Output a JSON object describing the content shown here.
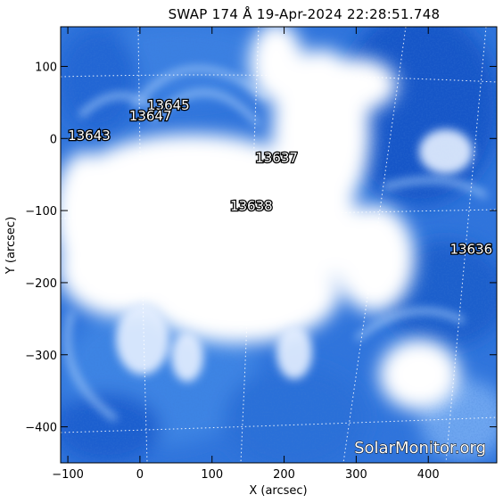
{
  "title": "SWAP 174 Å 19-Apr-2024 22:28:51.748",
  "x_axis": {
    "label": "X (arcsec)",
    "range": [
      -110,
      495
    ],
    "ticks": [
      -100,
      0,
      100,
      200,
      300,
      400
    ],
    "tick_labels": [
      "−100",
      "0",
      "100",
      "200",
      "300",
      "400"
    ]
  },
  "y_axis": {
    "label": "Y (arcsec)",
    "range": [
      -450,
      155
    ],
    "ticks": [
      100,
      0,
      -100,
      -200,
      -300,
      -400
    ],
    "tick_labels": [
      "100",
      "0",
      "−100",
      "−200",
      "−300",
      "−400"
    ]
  },
  "regions": [
    {
      "id": "13645",
      "label": "13645",
      "x": 10,
      "y": 40
    },
    {
      "id": "13647",
      "label": "13647",
      "x": -15,
      "y": 25
    },
    {
      "id": "13643",
      "label": "13643",
      "x": -100,
      "y": -2
    },
    {
      "id": "13637",
      "label": "13637",
      "x": 160,
      "y": -33
    },
    {
      "id": "13638",
      "label": "13638",
      "x": 125,
      "y": -100
    },
    {
      "id": "13636",
      "label": "13636",
      "x": 430,
      "y": -160
    }
  ],
  "watermark": "SolarMonitor.org",
  "colors": {
    "map_deep": "#0a3aa8",
    "map_mid": "#3d7fe0",
    "map_light": "#a8cdfb",
    "saturated": "#ffffff"
  }
}
